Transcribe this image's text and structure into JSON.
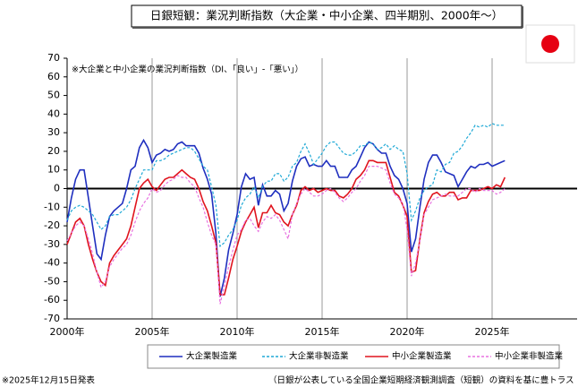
{
  "chart_data": {
    "type": "line",
    "title": "日銀短観：業況判断指数（大企業・中小企業、四半期別、2000年～）",
    "annotation": "※大企業と中小企業の業況判断指数（DI、「良い」-「悪い」）",
    "footnote_left": "※2025年12月15日発表",
    "footnote_right": "（日銀が公表している全国企業短期経済観測調査（短観）の資料を基に豊トラス",
    "xlim": [
      2000,
      2030
    ],
    "xticks": [
      {
        "value": 2000,
        "label": "2000年"
      },
      {
        "value": 2005,
        "label": "2005年"
      },
      {
        "value": 2010,
        "label": "2010年"
      },
      {
        "value": 2015,
        "label": "2015年"
      },
      {
        "value": 2020,
        "label": "2020年"
      },
      {
        "value": 2025,
        "label": "2025年"
      }
    ],
    "ylim": [
      -70,
      70
    ],
    "yticks": [
      -70,
      -60,
      -50,
      -40,
      -30,
      -20,
      -10,
      0,
      10,
      20,
      30,
      40,
      50,
      60,
      70
    ],
    "grid": "x",
    "x": [
      2000,
      2000.25,
      2000.5,
      2000.75,
      2001,
      2001.25,
      2001.5,
      2001.75,
      2002,
      2002.25,
      2002.5,
      2002.75,
      2003,
      2003.25,
      2003.5,
      2003.75,
      2004,
      2004.25,
      2004.5,
      2004.75,
      2005,
      2005.25,
      2005.5,
      2005.75,
      2006,
      2006.25,
      2006.5,
      2006.75,
      2007,
      2007.25,
      2007.5,
      2007.75,
      2008,
      2008.25,
      2008.5,
      2008.75,
      2009,
      2009.25,
      2009.5,
      2009.75,
      2010,
      2010.25,
      2010.5,
      2010.75,
      2011,
      2011.25,
      2011.5,
      2011.75,
      2012,
      2012.25,
      2012.5,
      2012.75,
      2013,
      2013.25,
      2013.5,
      2013.75,
      2014,
      2014.25,
      2014.5,
      2014.75,
      2015,
      2015.25,
      2015.5,
      2015.75,
      2016,
      2016.25,
      2016.5,
      2016.75,
      2017,
      2017.25,
      2017.5,
      2017.75,
      2018,
      2018.25,
      2018.5,
      2018.75,
      2019,
      2019.25,
      2019.5,
      2019.75,
      2020,
      2020.25,
      2020.5,
      2020.75,
      2021,
      2021.25,
      2021.5,
      2021.75,
      2022,
      2022.25,
      2022.5,
      2022.75,
      2023,
      2023.25,
      2023.5,
      2023.75,
      2024,
      2024.25,
      2024.5,
      2024.75,
      2025,
      2025.25,
      2025.5,
      2025.75
    ],
    "series": [
      {
        "name": "大企業製造業",
        "color": "#1f2fbf",
        "dashed": false,
        "values": [
          -18,
          -5,
          5,
          10,
          10,
          -5,
          -20,
          -35,
          -38,
          -25,
          -15,
          -12,
          -10,
          -8,
          0,
          10,
          12,
          22,
          26,
          22,
          14,
          18,
          19,
          21,
          20,
          21,
          24,
          25,
          23,
          23,
          23,
          19,
          11,
          5,
          -3,
          -24,
          -58,
          -48,
          -33,
          -24,
          -14,
          1,
          8,
          5,
          6,
          -9,
          2,
          -4,
          -4,
          -1,
          -3,
          -12,
          -8,
          4,
          12,
          16,
          17,
          12,
          13,
          12,
          12,
          15,
          12,
          12,
          6,
          6,
          6,
          10,
          12,
          17,
          22,
          25,
          24,
          21,
          19,
          19,
          12,
          7,
          5,
          0,
          -8,
          -34,
          -27,
          -10,
          5,
          14,
          18,
          18,
          14,
          9,
          8,
          7,
          1,
          5,
          9,
          12,
          11,
          13,
          13,
          14,
          12,
          13,
          14,
          15
        ]
      },
      {
        "name": "大企業非製造業",
        "color": "#1fa9d6",
        "dashed": true,
        "values": [
          -17,
          -12,
          -10,
          -9,
          -10,
          -12,
          -14,
          -18,
          -22,
          -20,
          -15,
          -14,
          -14,
          -12,
          -10,
          -6,
          0,
          5,
          10,
          10,
          10,
          15,
          15,
          16,
          18,
          19,
          20,
          21,
          22,
          22,
          20,
          16,
          12,
          10,
          1,
          -9,
          -31,
          -29,
          -25,
          -22,
          -17,
          -9,
          -5,
          -3,
          1,
          -5,
          1,
          4,
          4,
          8,
          8,
          4,
          6,
          12,
          14,
          20,
          24,
          19,
          13,
          16,
          19,
          23,
          25,
          25,
          22,
          19,
          18,
          18,
          20,
          23,
          23,
          25,
          24,
          21,
          22,
          24,
          21,
          23,
          21,
          20,
          8,
          -17,
          -12,
          -5,
          -1,
          1,
          2,
          10,
          9,
          13,
          14,
          19,
          20,
          23,
          27,
          30,
          34,
          33,
          34,
          33,
          35,
          34,
          34,
          34
        ]
      },
      {
        "name": "中小企業製造業",
        "color": "#e0141e",
        "dashed": false,
        "values": [
          -30,
          -24,
          -18,
          -16,
          -20,
          -30,
          -38,
          -45,
          -50,
          -52,
          -40,
          -36,
          -33,
          -30,
          -27,
          -20,
          -10,
          0,
          3,
          5,
          1,
          -1,
          2,
          5,
          6,
          6,
          8,
          10,
          8,
          6,
          5,
          0,
          -7,
          -12,
          -20,
          -29,
          -57,
          -57,
          -48,
          -38,
          -31,
          -23,
          -18,
          -14,
          -10,
          -21,
          -13,
          -13,
          -9,
          -13,
          -14,
          -18,
          -20,
          -14,
          -9,
          -1,
          1,
          -1,
          0,
          -2,
          -1,
          0,
          -1,
          -1,
          -4,
          -5,
          -3,
          0,
          5,
          7,
          10,
          15,
          15,
          14,
          14,
          14,
          6,
          -2,
          -4,
          -9,
          -15,
          -45,
          -44,
          -27,
          -13,
          -7,
          -3,
          -2,
          -4,
          -4,
          -2,
          -2,
          -6,
          -5,
          -5,
          -1,
          -1,
          -1,
          0,
          1,
          0,
          2,
          1,
          6
        ]
      },
      {
        "name": "中小企業非製造業",
        "color": "#e872e0",
        "dashed": true,
        "values": [
          -28,
          -24,
          -20,
          -18,
          -20,
          -27,
          -35,
          -45,
          -53,
          -50,
          -42,
          -38,
          -35,
          -32,
          -30,
          -25,
          -18,
          -12,
          -8,
          -5,
          0,
          -2,
          -1,
          2,
          4,
          5,
          7,
          6,
          6,
          3,
          1,
          -5,
          -10,
          -18,
          -25,
          -30,
          -62,
          -52,
          -42,
          -33,
          -25,
          -22,
          -17,
          -16,
          -20,
          -23,
          -18,
          -15,
          -16,
          -14,
          -17,
          -22,
          -27,
          -14,
          -8,
          -3,
          0,
          -2,
          -4,
          -4,
          -3,
          -1,
          0,
          -2,
          -5,
          -7,
          -5,
          -2,
          0,
          4,
          7,
          12,
          12,
          12,
          11,
          10,
          3,
          -3,
          -5,
          -8,
          -22,
          -47,
          -40,
          -28,
          -14,
          -10,
          -6,
          -5,
          -4,
          -3,
          -4,
          -4,
          -4,
          -2,
          0,
          0,
          -2,
          0,
          -1,
          -1,
          -1,
          -3,
          -2,
          0
        ]
      }
    ]
  }
}
